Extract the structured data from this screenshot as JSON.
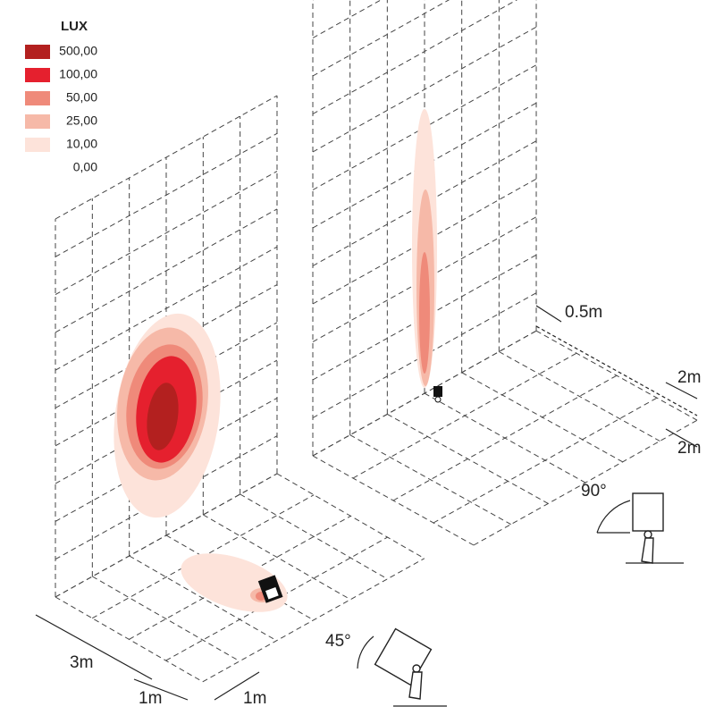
{
  "legend": {
    "title": "LUX",
    "items": [
      {
        "label": "500,00",
        "color": "#b3201f"
      },
      {
        "label": "100,00",
        "color": "#e5202e"
      },
      {
        "label": "50,00",
        "color": "#ef8a7a"
      },
      {
        "label": "25,00",
        "color": "#f6b9a8"
      },
      {
        "label": "10,00",
        "color": "#fde3da"
      },
      {
        "label": "0,00",
        "color": "#ffffff"
      }
    ]
  },
  "dimensions": {
    "depth": "3m",
    "cell_front": "1m",
    "cell_side": "1m",
    "height": "0.5m",
    "width_a": "2m",
    "width_b": "2m"
  },
  "angles": {
    "tilted": "45°",
    "upright": "90°"
  }
}
